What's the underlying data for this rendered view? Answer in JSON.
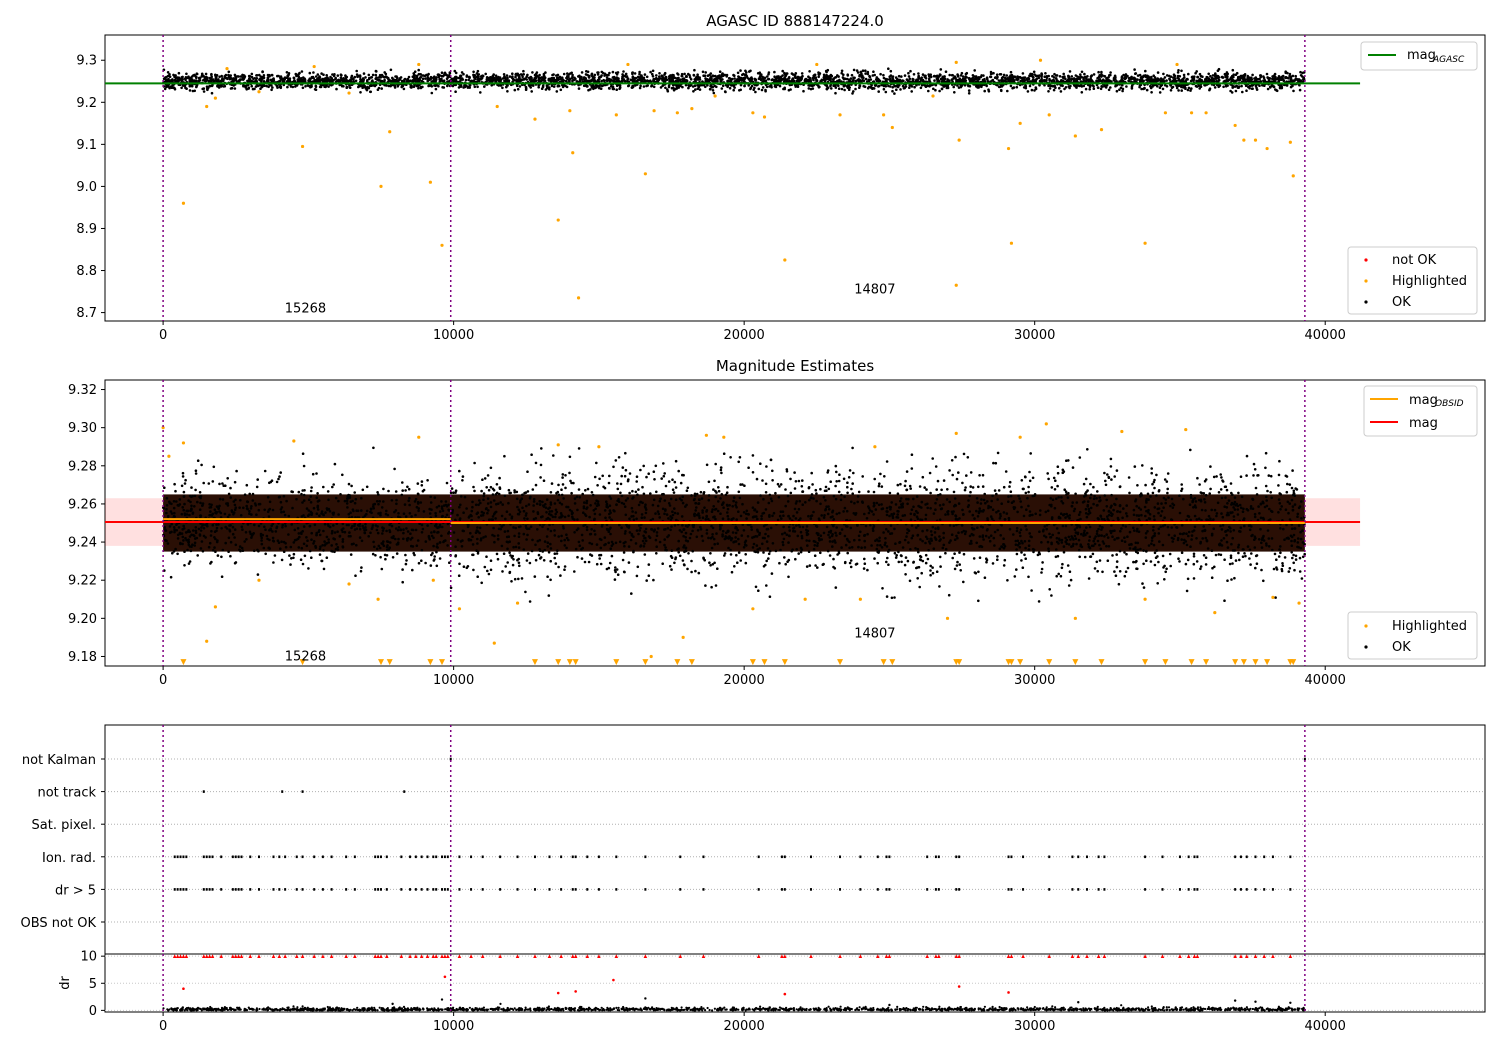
{
  "chart_data": [
    {
      "type": "scatter",
      "title": "AGASC ID 888147224.0",
      "xlabel": "",
      "ylabel": "",
      "xlim": [
        -2000,
        45500
      ],
      "ylim": [
        8.68,
        9.36
      ],
      "x_ticks": [
        0,
        10000,
        20000,
        30000,
        40000
      ],
      "y_ticks": [
        8.7,
        8.8,
        8.9,
        9.0,
        9.1,
        9.2,
        9.3
      ],
      "obsid_boundaries": [
        0,
        9900,
        39300
      ],
      "obsid_labels": [
        {
          "text": "15268",
          "x": 4900,
          "y": 8.71
        },
        {
          "text": "14807",
          "x": 24500,
          "y": 8.755
        }
      ],
      "reference_lines": [
        {
          "name": "mag",
          "subscript": "AGASC",
          "value": 9.245,
          "x_range": [
            -2000,
            41200
          ],
          "color": "#008000"
        }
      ],
      "ok_band": {
        "x_range": [
          0,
          39300
        ],
        "min": 9.22,
        "max": 9.28
      },
      "series": [
        {
          "name": "not OK",
          "color": "#ff0000",
          "points": []
        },
        {
          "name": "Highlighted",
          "color": "#ffa500",
          "points": [
            [
              700,
              8.96
            ],
            [
              1500,
              9.19
            ],
            [
              1800,
              9.21
            ],
            [
              4800,
              9.095
            ],
            [
              7500,
              9.0
            ],
            [
              7800,
              9.13
            ],
            [
              9200,
              9.01
            ],
            [
              9600,
              8.86
            ],
            [
              11500,
              9.19
            ],
            [
              12800,
              9.16
            ],
            [
              13600,
              8.92
            ],
            [
              14000,
              9.18
            ],
            [
              14100,
              9.08
            ],
            [
              14300,
              8.735
            ],
            [
              15600,
              9.17
            ],
            [
              16600,
              9.03
            ],
            [
              16900,
              9.18
            ],
            [
              17700,
              9.175
            ],
            [
              18200,
              9.185
            ],
            [
              20300,
              9.175
            ],
            [
              20700,
              9.165
            ],
            [
              21400,
              8.825
            ],
            [
              23300,
              9.17
            ],
            [
              24800,
              9.17
            ],
            [
              25100,
              9.14
            ],
            [
              27400,
              9.11
            ],
            [
              27300,
              8.765
            ],
            [
              29100,
              9.09
            ],
            [
              29200,
              8.865
            ],
            [
              29500,
              9.15
            ],
            [
              30500,
              9.17
            ],
            [
              31400,
              9.12
            ],
            [
              32300,
              9.135
            ],
            [
              33800,
              8.865
            ],
            [
              34500,
              9.175
            ],
            [
              35400,
              9.175
            ],
            [
              35900,
              9.175
            ],
            [
              36900,
              9.145
            ],
            [
              37200,
              9.11
            ],
            [
              37600,
              9.11
            ],
            [
              38000,
              9.09
            ],
            [
              38800,
              9.105
            ],
            [
              38900,
              9.025
            ],
            [
              2200,
              9.28
            ],
            [
              5200,
              9.285
            ],
            [
              8800,
              9.29
            ],
            [
              16000,
              9.29
            ],
            [
              22500,
              9.29
            ],
            [
              27300,
              9.295
            ],
            [
              30200,
              9.3
            ],
            [
              34900,
              9.29
            ],
            [
              3300,
              9.225
            ],
            [
              6400,
              9.222
            ],
            [
              19000,
              9.215
            ],
            [
              26500,
              9.215
            ]
          ]
        },
        {
          "name": "OK",
          "color": "#000000",
          "points": []
        }
      ],
      "legend": {
        "position": "lower-right"
      },
      "reference_legend": {
        "position": "upper-right"
      }
    },
    {
      "type": "scatter",
      "title": "Magnitude Estimates",
      "xlabel": "",
      "ylabel": "",
      "xlim": [
        -2000,
        45500
      ],
      "ylim": [
        9.175,
        9.325
      ],
      "x_ticks": [
        0,
        10000,
        20000,
        30000,
        40000
      ],
      "y_ticks": [
        9.18,
        9.2,
        9.22,
        9.24,
        9.26,
        9.28,
        9.3,
        9.32
      ],
      "obsid_boundaries": [
        0,
        9900,
        39300
      ],
      "obsid_labels": [
        {
          "text": "15268",
          "x": 4900,
          "y": 9.18
        },
        {
          "text": "14807",
          "x": 24500,
          "y": 9.192
        }
      ],
      "reference_lines": [
        {
          "name": "mag",
          "subscript": "OBSID",
          "segments": [
            {
              "x_range": [
                0,
                9900
              ],
              "value": 9.252
            },
            {
              "x_range": [
                9900,
                39300
              ],
              "value": 9.25
            }
          ],
          "color": "#ffa500"
        },
        {
          "name": "mag",
          "subscript": "",
          "value": 9.2505,
          "x_range": [
            -2000,
            41200
          ],
          "color": "#ff0000",
          "band": [
            9.238,
            9.263
          ]
        }
      ],
      "ok_band": {
        "x_range": [
          0,
          39300
        ],
        "min": 9.235,
        "max": 9.265
      },
      "clipped_marker_y": 9.177,
      "clipped_x": [
        700,
        4800,
        7500,
        7800,
        9200,
        9600,
        12800,
        13600,
        14000,
        14200,
        15600,
        16600,
        17700,
        18200,
        20300,
        20700,
        21400,
        23300,
        24800,
        25100,
        27300,
        27400,
        29100,
        29200,
        29500,
        30500,
        31400,
        32300,
        33800,
        34500,
        35400,
        35900,
        36900,
        37200,
        37600,
        38000,
        38800,
        38900
      ],
      "series": [
        {
          "name": "Highlighted",
          "color": "#ffa500",
          "points": [
            [
              0,
              9.3
            ],
            [
              200,
              9.285
            ],
            [
              700,
              9.292
            ],
            [
              1500,
              9.188
            ],
            [
              1800,
              9.206
            ],
            [
              3300,
              9.22
            ],
            [
              4500,
              9.293
            ],
            [
              6400,
              9.218
            ],
            [
              7400,
              9.21
            ],
            [
              8800,
              9.295
            ],
            [
              9300,
              9.22
            ],
            [
              10200,
              9.205
            ],
            [
              11400,
              9.187
            ],
            [
              12200,
              9.208
            ],
            [
              13600,
              9.291
            ],
            [
              15000,
              9.29
            ],
            [
              16800,
              9.18
            ],
            [
              17900,
              9.19
            ],
            [
              18700,
              9.296
            ],
            [
              19300,
              9.295
            ],
            [
              20300,
              9.205
            ],
            [
              22100,
              9.21
            ],
            [
              24000,
              9.21
            ],
            [
              24500,
              9.29
            ],
            [
              27300,
              9.297
            ],
            [
              27000,
              9.2
            ],
            [
              29500,
              9.295
            ],
            [
              30400,
              9.302
            ],
            [
              31400,
              9.2
            ],
            [
              33000,
              9.298
            ],
            [
              33800,
              9.21
            ],
            [
              35200,
              9.299
            ],
            [
              36200,
              9.203
            ],
            [
              38200,
              9.211
            ],
            [
              39100,
              9.208
            ]
          ]
        },
        {
          "name": "OK",
          "color": "#000000",
          "points": []
        }
      ],
      "legend": {
        "position": "lower-right"
      },
      "reference_legend": {
        "position": "upper-right"
      }
    },
    {
      "type": "scatter",
      "title": "",
      "xlim": [
        -2000,
        45500
      ],
      "x_ticks": [
        0,
        10000,
        20000,
        30000,
        40000
      ],
      "flag_rows": [
        "not Kalman",
        "not track",
        "Sat. pixel.",
        "Ion. rad.",
        "dr > 5",
        "OBS not OK"
      ],
      "obsid_boundaries": [
        0,
        9900,
        39300
      ],
      "flags": {
        "not track": [
          1400,
          4100,
          4800,
          8300
        ],
        "Ion. rad.": [
          400,
          500,
          600,
          700,
          800,
          1400,
          1500,
          1600,
          1700,
          2000,
          2400,
          2500,
          2600,
          2700,
          3000,
          3300,
          3800,
          4000,
          4200,
          4600,
          4800,
          5200,
          5500,
          5800,
          6300,
          6600,
          7300,
          7400,
          7500,
          7700,
          8200,
          8500,
          8700,
          8900,
          9100,
          9300,
          9400,
          9600,
          9700,
          9800,
          10200,
          10600,
          11000,
          11600,
          12200,
          12800,
          13300,
          13700,
          14100,
          14200,
          14600,
          15000,
          15600,
          16600,
          17800,
          18600,
          20500,
          21300,
          21400,
          22300,
          23300,
          24000,
          24600,
          24900,
          25000,
          26300,
          26600,
          26700,
          27300,
          27400,
          29100,
          29200,
          29600,
          30500,
          31300,
          31500,
          31800,
          32200,
          32400,
          33800,
          34400,
          35000,
          35300,
          35500,
          35600,
          36900,
          37100,
          37300,
          37600,
          37900,
          38200,
          38800
        ],
        "dr > 5": [
          400,
          500,
          600,
          700,
          800,
          1400,
          1500,
          1600,
          1700,
          2000,
          2400,
          2500,
          2600,
          2700,
          3000,
          3300,
          3800,
          4000,
          4200,
          4600,
          4800,
          5200,
          5500,
          5800,
          6300,
          6600,
          7300,
          7400,
          7500,
          7700,
          8200,
          8500,
          8700,
          8900,
          9100,
          9300,
          9400,
          9600,
          9700,
          9800,
          10200,
          10600,
          11000,
          11600,
          12200,
          12800,
          13300,
          13700,
          14100,
          14200,
          14600,
          15000,
          15600,
          16600,
          17800,
          18600,
          20500,
          21300,
          21400,
          22300,
          23300,
          24000,
          24600,
          24900,
          25000,
          26300,
          26600,
          26700,
          27300,
          27400,
          29100,
          29200,
          29600,
          30500,
          31300,
          31500,
          31800,
          32200,
          32400,
          33800,
          34400,
          35000,
          35300,
          35500,
          35600,
          36900,
          37100,
          37300,
          37600,
          37900,
          38200,
          38800
        ],
        "not Kalman": [
          9900,
          39300
        ]
      }
    },
    {
      "type": "scatter",
      "title": "",
      "xlabel": "",
      "ylabel": "dr",
      "xlim": [
        -2000,
        45500
      ],
      "ylim": [
        -0.3,
        10.4
      ],
      "x_ticks": [
        0,
        10000,
        20000,
        30000,
        40000
      ],
      "y_ticks": [
        0,
        5,
        10
      ],
      "obsid_boundaries": [
        0,
        9900,
        39300
      ],
      "capped_value": 10,
      "red_points": [
        [
          700,
          4.0
        ],
        [
          9700,
          6.2
        ],
        [
          13600,
          3.2
        ],
        [
          14200,
          3.5
        ],
        [
          15500,
          5.6
        ],
        [
          21400,
          3.0
        ],
        [
          27400,
          4.4
        ],
        [
          29100,
          3.3
        ]
      ],
      "black_points": [
        [
          9600,
          2.0
        ],
        [
          16600,
          2.2
        ],
        [
          31500,
          1.5
        ],
        [
          36900,
          1.8
        ],
        [
          37600,
          1.6
        ],
        [
          38800,
          1.4
        ],
        [
          7900,
          1.2
        ],
        [
          25000,
          1.0
        ]
      ]
    }
  ]
}
